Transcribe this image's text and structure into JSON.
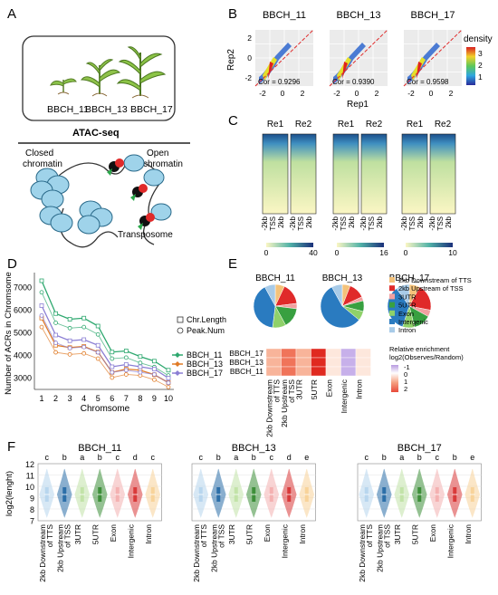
{
  "panel_letters": {
    "a": "A",
    "b": "B",
    "c": "C",
    "d": "D",
    "e": "E",
    "f": "F"
  },
  "panelA": {
    "stages": [
      "BBCH_11",
      "BBCH_13",
      "BBCH_17"
    ],
    "assay": "ATAC-seq",
    "closed": [
      "Closed",
      "chromatin"
    ],
    "open": [
      "Open",
      "chromatin"
    ],
    "transposome": "Transposome"
  },
  "panelB": {
    "titles": [
      "BBCH_11",
      "BBCH_13",
      "BBCH_17"
    ],
    "cors": [
      "Cor = 0.9296",
      "Cor = 0.9390",
      "Cor = 0.9598"
    ],
    "xlabel": "Rep1",
    "ylabel": "Rep2",
    "xticks": [
      "-2",
      "0",
      "2"
    ],
    "yticks": [
      "2",
      "0",
      "-2"
    ],
    "legend_title": "density",
    "legend_ticks": [
      "3",
      "2",
      "1"
    ]
  },
  "panelC": {
    "reps": [
      "Re1",
      "Re2"
    ],
    "xticks": [
      "-2kb",
      "TSS",
      "2kb"
    ],
    "scales": [
      {
        "min": "0",
        "max": "40"
      },
      {
        "min": "0",
        "max": "16"
      },
      {
        "min": "0",
        "max": "10"
      }
    ]
  },
  "panelD": {
    "title": "",
    "ylabel": "Number of ACRs in Chromsome",
    "xlabel": "Chromsome",
    "legend_markers": [
      "Chr.Length",
      "Peak.Num"
    ],
    "legend_series": [
      "BBCH_11",
      "BBCH_13",
      "BBCH_17"
    ],
    "colors": [
      "#2ea86f",
      "#e07b26",
      "#8b7fd4"
    ]
  },
  "chart_data": {
    "type": "line",
    "x": [
      1,
      2,
      3,
      4,
      5,
      6,
      7,
      8,
      9,
      10
    ],
    "ylim": [
      2500,
      7500
    ],
    "yticks": [
      3000,
      4000,
      5000,
      6000,
      7000
    ],
    "series": [
      {
        "name": "BBCH_11",
        "values": [
          7300,
          5850,
          5600,
          5650,
          5300,
          4150,
          4200,
          3950,
          3750,
          3350
        ]
      },
      {
        "name": "BBCH_13",
        "values": [
          5650,
          4450,
          4350,
          4400,
          4150,
          3250,
          3400,
          3350,
          3150,
          2800
        ]
      },
      {
        "name": "BBCH_17",
        "values": [
          6200,
          4900,
          4650,
          4700,
          4450,
          3500,
          3600,
          3500,
          3400,
          3000
        ]
      }
    ]
  },
  "panelE": {
    "titles": [
      "BBCH_11",
      "BBCH_13",
      "BBCH_17"
    ],
    "categories": [
      "2kb Downstream of TTS",
      "2kb Upstream of TSS",
      "3UTR",
      "5UTR",
      "Exon",
      "Intergenic",
      "Intron"
    ],
    "cat_colors": [
      "#f4c27a",
      "#e02a2a",
      "#f2a0a0",
      "#38a040",
      "#8fd16a",
      "#2a7bc0",
      "#a8cbe8"
    ],
    "pies": [
      [
        0.07,
        0.16,
        0.04,
        0.15,
        0.1,
        0.4,
        0.08
      ],
      [
        0.06,
        0.12,
        0.03,
        0.08,
        0.07,
        0.56,
        0.08
      ],
      [
        0.08,
        0.2,
        0.05,
        0.13,
        0.09,
        0.35,
        0.1
      ]
    ],
    "heat_rows": [
      "BBCH_17",
      "BBCH_13",
      "BBCH_11"
    ],
    "heat_values": [
      [
        0.6,
        1.3,
        0.5,
        2.0,
        0.2,
        -0.4,
        0.1
      ],
      [
        0.5,
        1.1,
        0.4,
        1.8,
        0.2,
        -0.5,
        0.1
      ],
      [
        0.4,
        1.2,
        0.4,
        1.9,
        0.3,
        -0.4,
        0.2
      ]
    ],
    "heat_xlabels": [
      "2kb Downstream of TTS",
      "2kb Upstream of TSS",
      "3UTR",
      "5UTR",
      "Exon",
      "Intergenic",
      "Intron"
    ],
    "enrich_title": [
      "Relative enrichment",
      "log2(Observes/Random)"
    ],
    "enrich_ticks": [
      "-1",
      "0",
      "1",
      "2"
    ]
  },
  "panelF": {
    "titles": [
      "BBCH_11",
      "BBCH_13",
      "BBCH_17"
    ],
    "ylabel": "log2(lenght)",
    "yticks": [
      "12",
      "11",
      "10",
      "9",
      "8",
      "7"
    ],
    "xlabels": [
      "2kb Downstream of TTS",
      "2kb Upstream of TSS",
      "3UTR",
      "5UTR",
      "Exon",
      "Intergenic",
      "Intron"
    ],
    "letters": [
      [
        "c",
        "b",
        "a",
        "b",
        "c",
        "d",
        "c"
      ],
      [
        "c",
        "b",
        "a",
        "b",
        "c",
        "d",
        "e"
      ],
      [
        "c",
        "b",
        "a",
        "b",
        "c",
        "b",
        "e"
      ]
    ],
    "colors": [
      "#b8d6ee",
      "#2c6fa8",
      "#c2e3a8",
      "#3e8f3a",
      "#f4b1b1",
      "#d93a3a",
      "#f8d39a"
    ]
  }
}
